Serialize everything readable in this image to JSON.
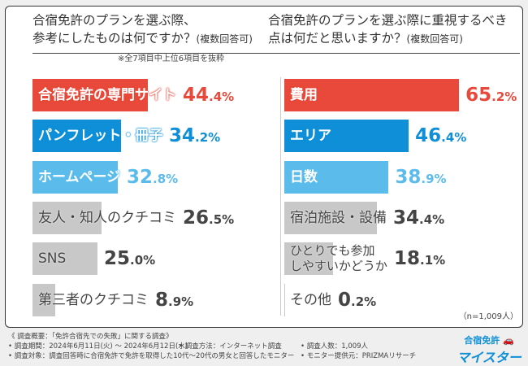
{
  "chart_data": [
    {
      "type": "bar",
      "orientation": "horizontal",
      "title": "合宿免許のプランを選ぶ際、参考にしたものは何ですか？",
      "title_suffix": "(複数回答可)",
      "note": "※全7項目中上位6項目を抜粋",
      "categories": [
        "合宿免許の専門サイト",
        "パンフレット・冊子",
        "ホームページ",
        "友人・知人のクチコミ",
        "SNS",
        "第三者のクチコミ"
      ],
      "values": [
        44.4,
        34.2,
        32.8,
        26.5,
        25.0,
        8.9
      ],
      "colors": [
        "#e8493a",
        "#0e8fd8",
        "#5bbcec",
        "#c8c8c8",
        "#c8c8c8",
        "#c8c8c8"
      ],
      "pct_colors": [
        "#e8493a",
        "#0e8fd8",
        "#5bbcec",
        "#444444",
        "#444444",
        "#444444"
      ],
      "xlim": [
        0,
        100
      ],
      "unit": "%"
    },
    {
      "type": "bar",
      "orientation": "horizontal",
      "title": "合宿免許のプランを選ぶ際に重視するべき点は何だと思いますか？",
      "title_suffix": "(複数回答可)",
      "categories": [
        "費用",
        "エリア",
        "日数",
        "宿泊施設・設備",
        "ひとりでも参加\nしやすいかどうか",
        "その他"
      ],
      "values": [
        65.2,
        46.4,
        38.9,
        34.4,
        18.1,
        0.2
      ],
      "colors": [
        "#e8493a",
        "#0e8fd8",
        "#5bbcec",
        "#c8c8c8",
        "#c8c8c8",
        "#c8c8c8"
      ],
      "pct_colors": [
        "#e8493a",
        "#0e8fd8",
        "#5bbcec",
        "#444444",
        "#444444",
        "#444444"
      ],
      "xlim": [
        0,
        100
      ],
      "unit": "%"
    }
  ],
  "title1a": "合宿免許のプランを選ぶ際、",
  "title1b": "参考にしたものは何ですか？",
  "title2a": "合宿免許のプランを選ぶ際に重視するべき",
  "title2b": "点は何だと思いますか？",
  "suffix": "(複数回答可)",
  "note": "※全7項目中上位6項目を抜粋",
  "sample": "（n=1,009人）",
  "footer": {
    "line1": "《 調査概要：「免許合宿先での失敗」に関する調査》",
    "period": "• 調査期間：2024年6月11日(火) ～ 2024年6月12日(水)",
    "method": "• 調査方法：インターネット調査",
    "people": "• 調査人数：1,009人",
    "target": "• 調査対象：調査回答時に合宿免許で免許を取得した10代～20代の男女と回答したモニター",
    "provider": "• モニター提供元：PRIZMAリサーチ"
  },
  "logo": {
    "top": "合宿免許",
    "bottom": "マイスター"
  }
}
